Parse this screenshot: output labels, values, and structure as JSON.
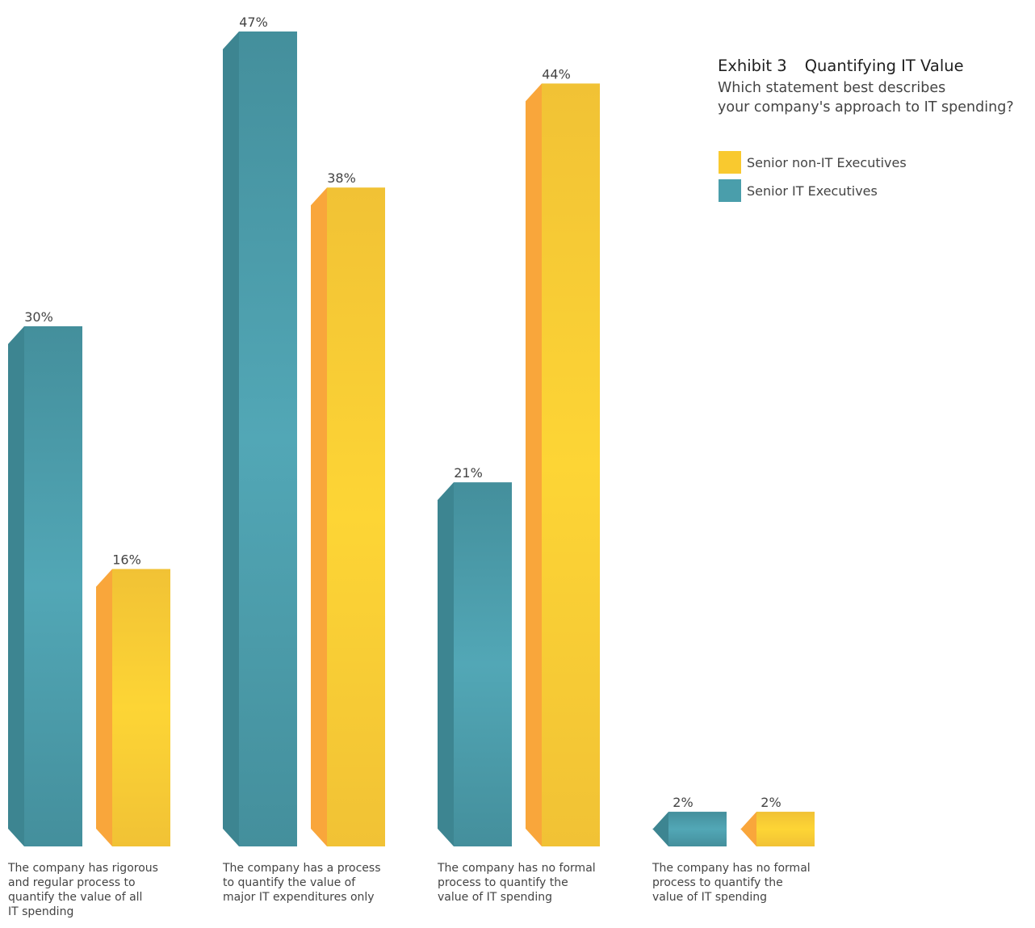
{
  "chart_data": {
    "type": "bar",
    "title": "Exhibit 3   Quantifying IT Value",
    "exhibit_number": "Exhibit 3",
    "exhibit_title": "Quantifying IT Value",
    "subtitle_lines": [
      "Which statement best describes",
      "your company's approach to IT spending?"
    ],
    "categories": [
      [
        "The company has rigorous",
        "and regular process to",
        "quantify the value of all",
        "IT spending"
      ],
      [
        "The company has a process",
        "to quantify the value of",
        "major IT expenditures only"
      ],
      [
        "The company has no formal",
        "process to quantify the",
        "value of IT spending"
      ],
      [
        "The company has no formal",
        "process to quantify the",
        "value of IT spending"
      ]
    ],
    "series": [
      {
        "name": "Senior IT Executives",
        "values": [
          30,
          47,
          21,
          2
        ],
        "labels": [
          "30%",
          "47%",
          "21%",
          "2%"
        ]
      },
      {
        "name": "Senior non-IT Executives",
        "values": [
          16,
          38,
          44,
          2
        ],
        "labels": [
          "16%",
          "38%",
          "44%",
          "2%"
        ]
      }
    ],
    "ylim": [
      0,
      47
    ],
    "grid": false,
    "legend_placement": "top-right",
    "legend_order": [
      "Senior non-IT Executives",
      "Senior IT Executives"
    ],
    "colors": {
      "Senior IT Executives": {
        "front_light": "#52a7b6",
        "front_dark": "#448f9c",
        "side": "#3d8591"
      },
      "Senior non-IT Executives": {
        "front_light": "#fdd535",
        "front_dark": "#f1c235",
        "side": "#f9a63b"
      }
    }
  }
}
